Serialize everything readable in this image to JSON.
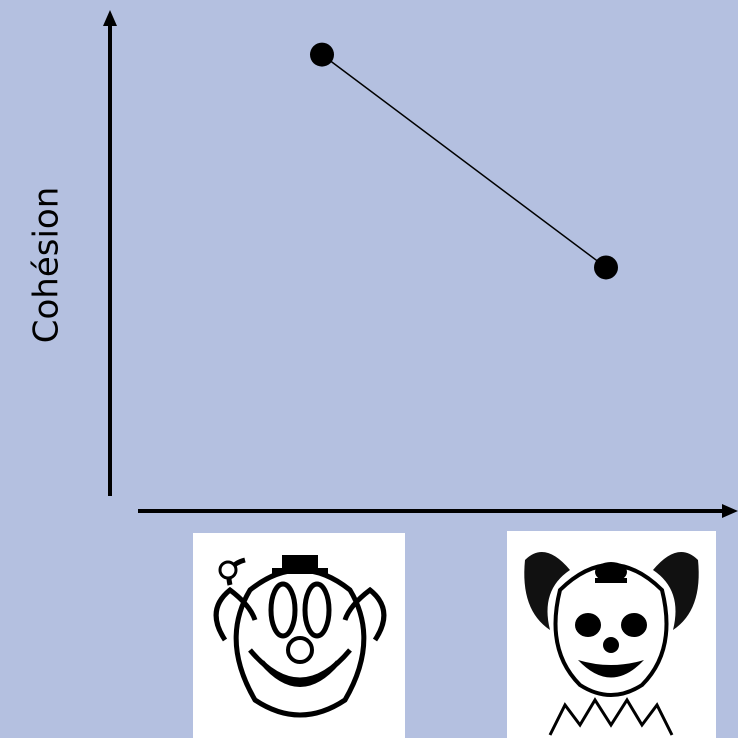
{
  "chart_data": {
    "type": "line",
    "y_label": "Cohésion",
    "categories": [
      null,
      null
    ],
    "values": [
      92,
      49
    ],
    "color": "#000000",
    "ylim": [
      0,
      100
    ]
  }
}
